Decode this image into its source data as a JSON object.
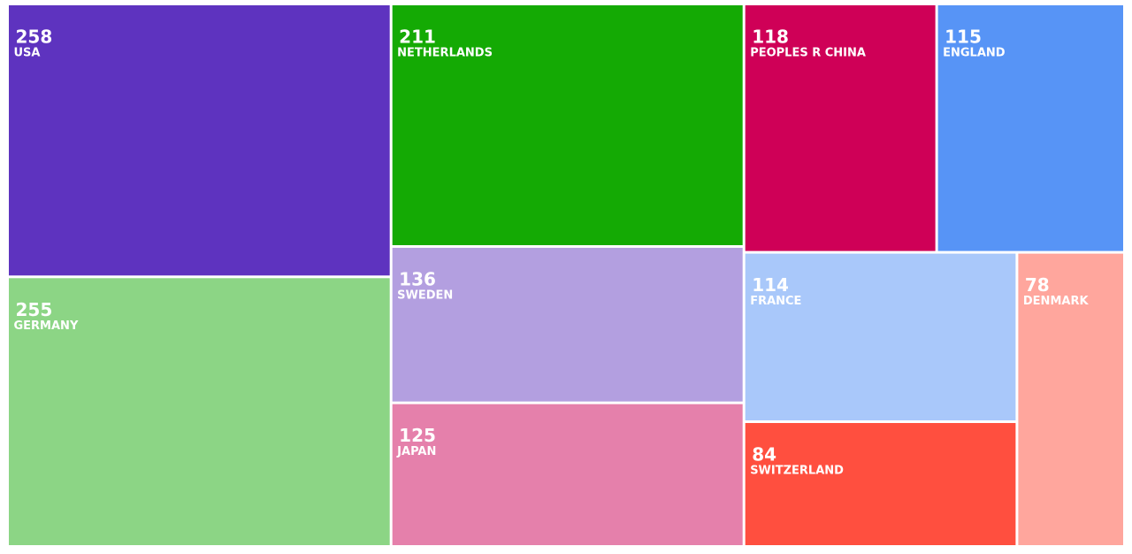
{
  "chart_data": {
    "type": "treemap",
    "categories": [
      "USA",
      "GERMANY",
      "NETHERLANDS",
      "SWEDEN",
      "JAPAN",
      "PEOPLES R CHINA",
      "ENGLAND",
      "FRANCE",
      "SWITZERLAND",
      "DENMARK"
    ],
    "values": [
      258,
      255,
      211,
      136,
      125,
      118,
      115,
      114,
      84,
      78
    ],
    "colors": [
      "#5e33bf",
      "#8cd585",
      "#14aa04",
      "#b39fe0",
      "#e580ab",
      "#cf0057",
      "#5794f6",
      "#a9c8fa",
      "#ff4f3f",
      "#ffa69d"
    ]
  }
}
